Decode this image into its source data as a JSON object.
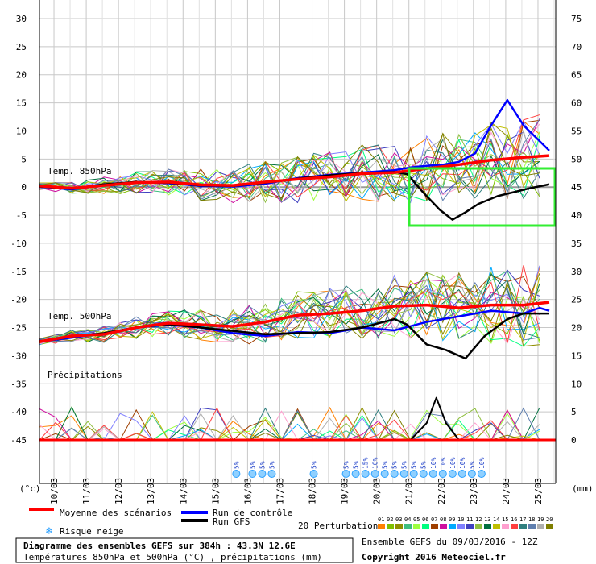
{
  "chart_data": {
    "type": "line",
    "left_axis": {
      "unit": "(°c)",
      "ticks": [
        30,
        25,
        20,
        15,
        10,
        5,
        0,
        -5,
        -10,
        -15,
        -20,
        -25,
        -30,
        -35,
        -40,
        -45
      ],
      "range": [
        -45,
        30
      ]
    },
    "right_axis": {
      "unit": "(mm)",
      "ticks": [
        75,
        70,
        65,
        60,
        55,
        50,
        45,
        40,
        35,
        30,
        25,
        20,
        15,
        10,
        5,
        0
      ],
      "range": [
        0,
        75
      ]
    },
    "x_dates": [
      "10/03",
      "11/03",
      "12/03",
      "13/03",
      "14/03",
      "15/03",
      "16/03",
      "17/03",
      "18/03",
      "19/03",
      "20/03",
      "21/03",
      "22/03",
      "23/03",
      "24/03",
      "25/03"
    ],
    "x_range": [
      0,
      16
    ],
    "panel_labels": {
      "t850": "Temp. 850hPa",
      "t500": "Temp. 500hPa",
      "precip": "Précipitations"
    },
    "series": {
      "t850_mean": {
        "name": "Moyenne des scénarios",
        "color": "#ff0000",
        "x": [
          0,
          1,
          2,
          3,
          4,
          5,
          6,
          7,
          8,
          9,
          10,
          11,
          12,
          13,
          14,
          15,
          15.8
        ],
        "y": [
          0.2,
          -0.2,
          0.3,
          0.8,
          0.9,
          0.4,
          0.3,
          0.9,
          1.4,
          1.8,
          2.4,
          2.6,
          3.3,
          4.0,
          4.8,
          5.3,
          5.6
        ]
      },
      "t850_control": {
        "name": "Run de contrôle",
        "color": "#0000ff",
        "x": [
          0,
          1,
          2,
          3,
          4,
          5,
          6,
          7,
          8,
          9,
          10,
          11,
          11.5,
          12,
          12.5,
          13,
          13.5,
          14,
          14.5,
          15,
          15.8
        ],
        "y": [
          0.1,
          -0.4,
          0.4,
          0.9,
          0.7,
          0.2,
          0.1,
          0.6,
          1.6,
          2.2,
          2.6,
          3.0,
          3.5,
          3.8,
          4.0,
          4.5,
          6.0,
          11.0,
          15.5,
          11.0,
          6.5
        ]
      },
      "t850_gfs": {
        "name": "Run GFS",
        "color": "#000000",
        "x": [
          0,
          1,
          2,
          3,
          4,
          5,
          6,
          7,
          8,
          9,
          10,
          11,
          11.4,
          11.9,
          12.4,
          12.8,
          13.2,
          13.6,
          14.2,
          14.7,
          15.2,
          15.8
        ],
        "y": [
          0.1,
          -0.3,
          0.5,
          0.9,
          0.8,
          0.3,
          0.2,
          0.8,
          1.5,
          2.1,
          2.5,
          2.7,
          2.3,
          -1.0,
          -4.0,
          -5.8,
          -4.5,
          -3.0,
          -1.6,
          -0.9,
          -0.2,
          0.5
        ]
      },
      "t500_mean": {
        "color": "#ff0000",
        "x": [
          0,
          1,
          2,
          3,
          4,
          5,
          6,
          7,
          8,
          9,
          10,
          11,
          12,
          13,
          14,
          15,
          15.8
        ],
        "y": [
          -27.5,
          -26.5,
          -26.2,
          -25,
          -24.2,
          -24.5,
          -24.8,
          -24.0,
          -22.8,
          -22.5,
          -22.0,
          -21.2,
          -21.0,
          -21.5,
          -21.0,
          -21.0,
          -20.5
        ]
      },
      "t500_control": {
        "color": "#0000ff",
        "x": [
          0,
          1,
          2,
          3,
          4,
          5,
          6,
          7,
          8,
          9,
          10,
          11,
          12,
          13,
          14,
          15,
          15.5,
          15.8
        ],
        "y": [
          -27.5,
          -26.8,
          -26.0,
          -25.0,
          -24.5,
          -25.0,
          -26.0,
          -26.5,
          -25.8,
          -26.0,
          -25.0,
          -25.5,
          -24.0,
          -23.0,
          -22.0,
          -22.5,
          -21.5,
          -22.0
        ]
      },
      "t500_gfs": {
        "color": "#000000",
        "x": [
          0,
          1,
          2,
          3,
          4,
          5,
          6,
          7,
          8,
          9,
          10,
          11,
          11.4,
          12,
          12.6,
          13.2,
          13.8,
          14.5,
          15,
          15.8
        ],
        "y": [
          -27.5,
          -26.6,
          -26.0,
          -25.0,
          -24.4,
          -25.0,
          -25.6,
          -26.2,
          -26.0,
          -25.8,
          -25.0,
          -23.5,
          -24.5,
          -28.0,
          -29.0,
          -30.5,
          -26.5,
          -23.5,
          -22.5,
          -22.5
        ]
      },
      "precip_gfs": {
        "color": "#000000",
        "x": [
          11.5,
          12.0,
          12.3,
          12.6,
          13.0
        ],
        "y": [
          0,
          3,
          7.5,
          3,
          0
        ]
      }
    },
    "snow_risk": {
      "x": [
        6.1,
        6.6,
        6.9,
        7.2,
        8.5,
        9.5,
        9.8,
        10.1,
        10.4,
        10.7,
        11.0,
        11.3,
        11.6,
        11.9,
        12.2,
        12.5,
        12.8,
        13.1,
        13.4,
        13.7
      ],
      "labels": [
        "5%",
        "5%",
        "5%",
        "5%",
        "5%",
        "5%",
        "5%",
        "15%",
        "10%",
        "5%",
        "5%",
        "5%",
        "5%",
        "5%",
        "10%",
        "10%",
        "10%",
        "10%",
        "5%",
        "10%"
      ]
    },
    "legend": {
      "mean": "Moyenne des scénarios",
      "control": "Run de contrôle",
      "gfs": "Run GFS",
      "perturbations": "20 Perturbations",
      "snow": "Risque neige",
      "perturbation_ids": [
        "01",
        "02",
        "03",
        "04",
        "05",
        "06",
        "07",
        "08",
        "09",
        "10",
        "11",
        "12",
        "13",
        "14",
        "15",
        "16",
        "17",
        "18",
        "19",
        "20"
      ],
      "perturbation_colors": [
        "#ff8000",
        "#7fbf00",
        "#8f8f00",
        "#3fbf7f",
        "#9fff3f",
        "#00ff7f",
        "#9f3f00",
        "#cf0f9f",
        "#00aaff",
        "#7f7fff",
        "#3f3fbf",
        "#8fbf3f",
        "#006f3f",
        "#bfbf00",
        "#ff9fcf",
        "#ff3f3f",
        "#2f7f7f",
        "#5f7faf",
        "#afafaf",
        "#7f7f00"
      ]
    },
    "footer": {
      "title": "Diagramme des ensembles GEFS sur 384h : 43.3N 12.6E",
      "subtitle": "Températures 850hPa et 500hPa (°C) , précipitations (mm)",
      "run": "Ensemble GEFS du 09/03/2016 - 12Z",
      "copyright": "Copyright 2016 Meteociel.fr"
    },
    "highlight_box_color": "#33ee33"
  }
}
